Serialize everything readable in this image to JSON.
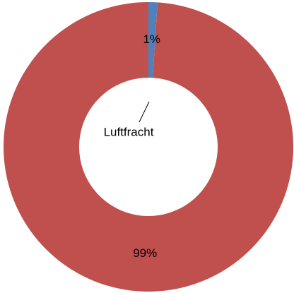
{
  "chart_data": {
    "type": "donut",
    "categories": [
      "Luftfracht",
      null
    ],
    "values": [
      1,
      99
    ],
    "value_labels": [
      "1%",
      "99%"
    ],
    "colors": [
      "#4f81bd",
      "#c0504d"
    ]
  }
}
